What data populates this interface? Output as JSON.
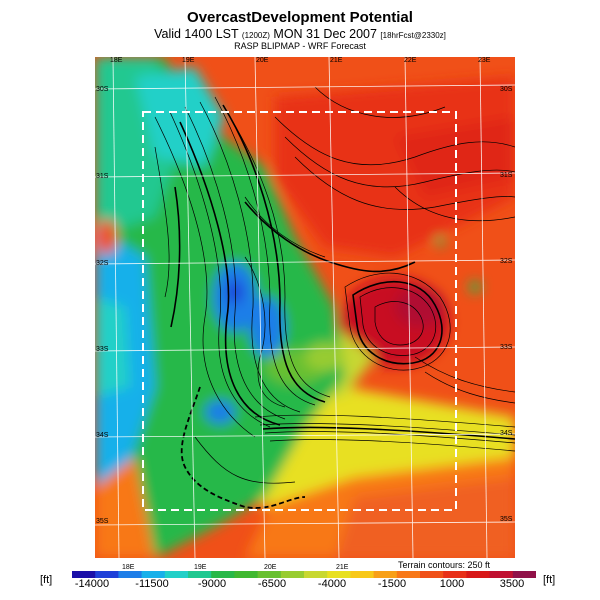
{
  "header": {
    "title": "OvercastDevelopment Potential",
    "valid_prefix": "Valid 1400 LST",
    "valid_small": "(1200Z)",
    "valid_main": "MON 31 Dec 2007",
    "valid_small2": "[18hrFcst@2330z]",
    "subtitle": "RASP BLIPMAP - WRF Forecast"
  },
  "map": {
    "top_lon_labels": [
      "18E",
      "19E",
      "20E",
      "21E",
      "22E",
      "23E"
    ],
    "bottom_lon_labels": [
      "18E",
      "19E",
      "20E",
      "21E"
    ],
    "left_lat_labels": [
      "30S",
      "31S",
      "32S",
      "33S",
      "34S",
      "35S"
    ],
    "right_lat_labels": [
      "30S",
      "31S",
      "32S",
      "33S",
      "34S",
      "35S"
    ],
    "terrain_note": "Terrain contours: 250 ft"
  },
  "colorbar": {
    "unit_left": "[ft]",
    "unit_right": "[ft]",
    "ticks": [
      "-14000",
      "-11500",
      "-9000",
      "-6500",
      "-4000",
      "-1500",
      "1000",
      "3500"
    ],
    "colors": [
      "#1a0fa8",
      "#1e40d8",
      "#1e7ee8",
      "#18b0ea",
      "#22d0c8",
      "#20c890",
      "#28b848",
      "#40b830",
      "#68c030",
      "#98cc30",
      "#c8d830",
      "#e8e020",
      "#f8c818",
      "#f8a018",
      "#f87818",
      "#f05018",
      "#e83018",
      "#d81818",
      "#c01030",
      "#901048"
    ]
  }
}
